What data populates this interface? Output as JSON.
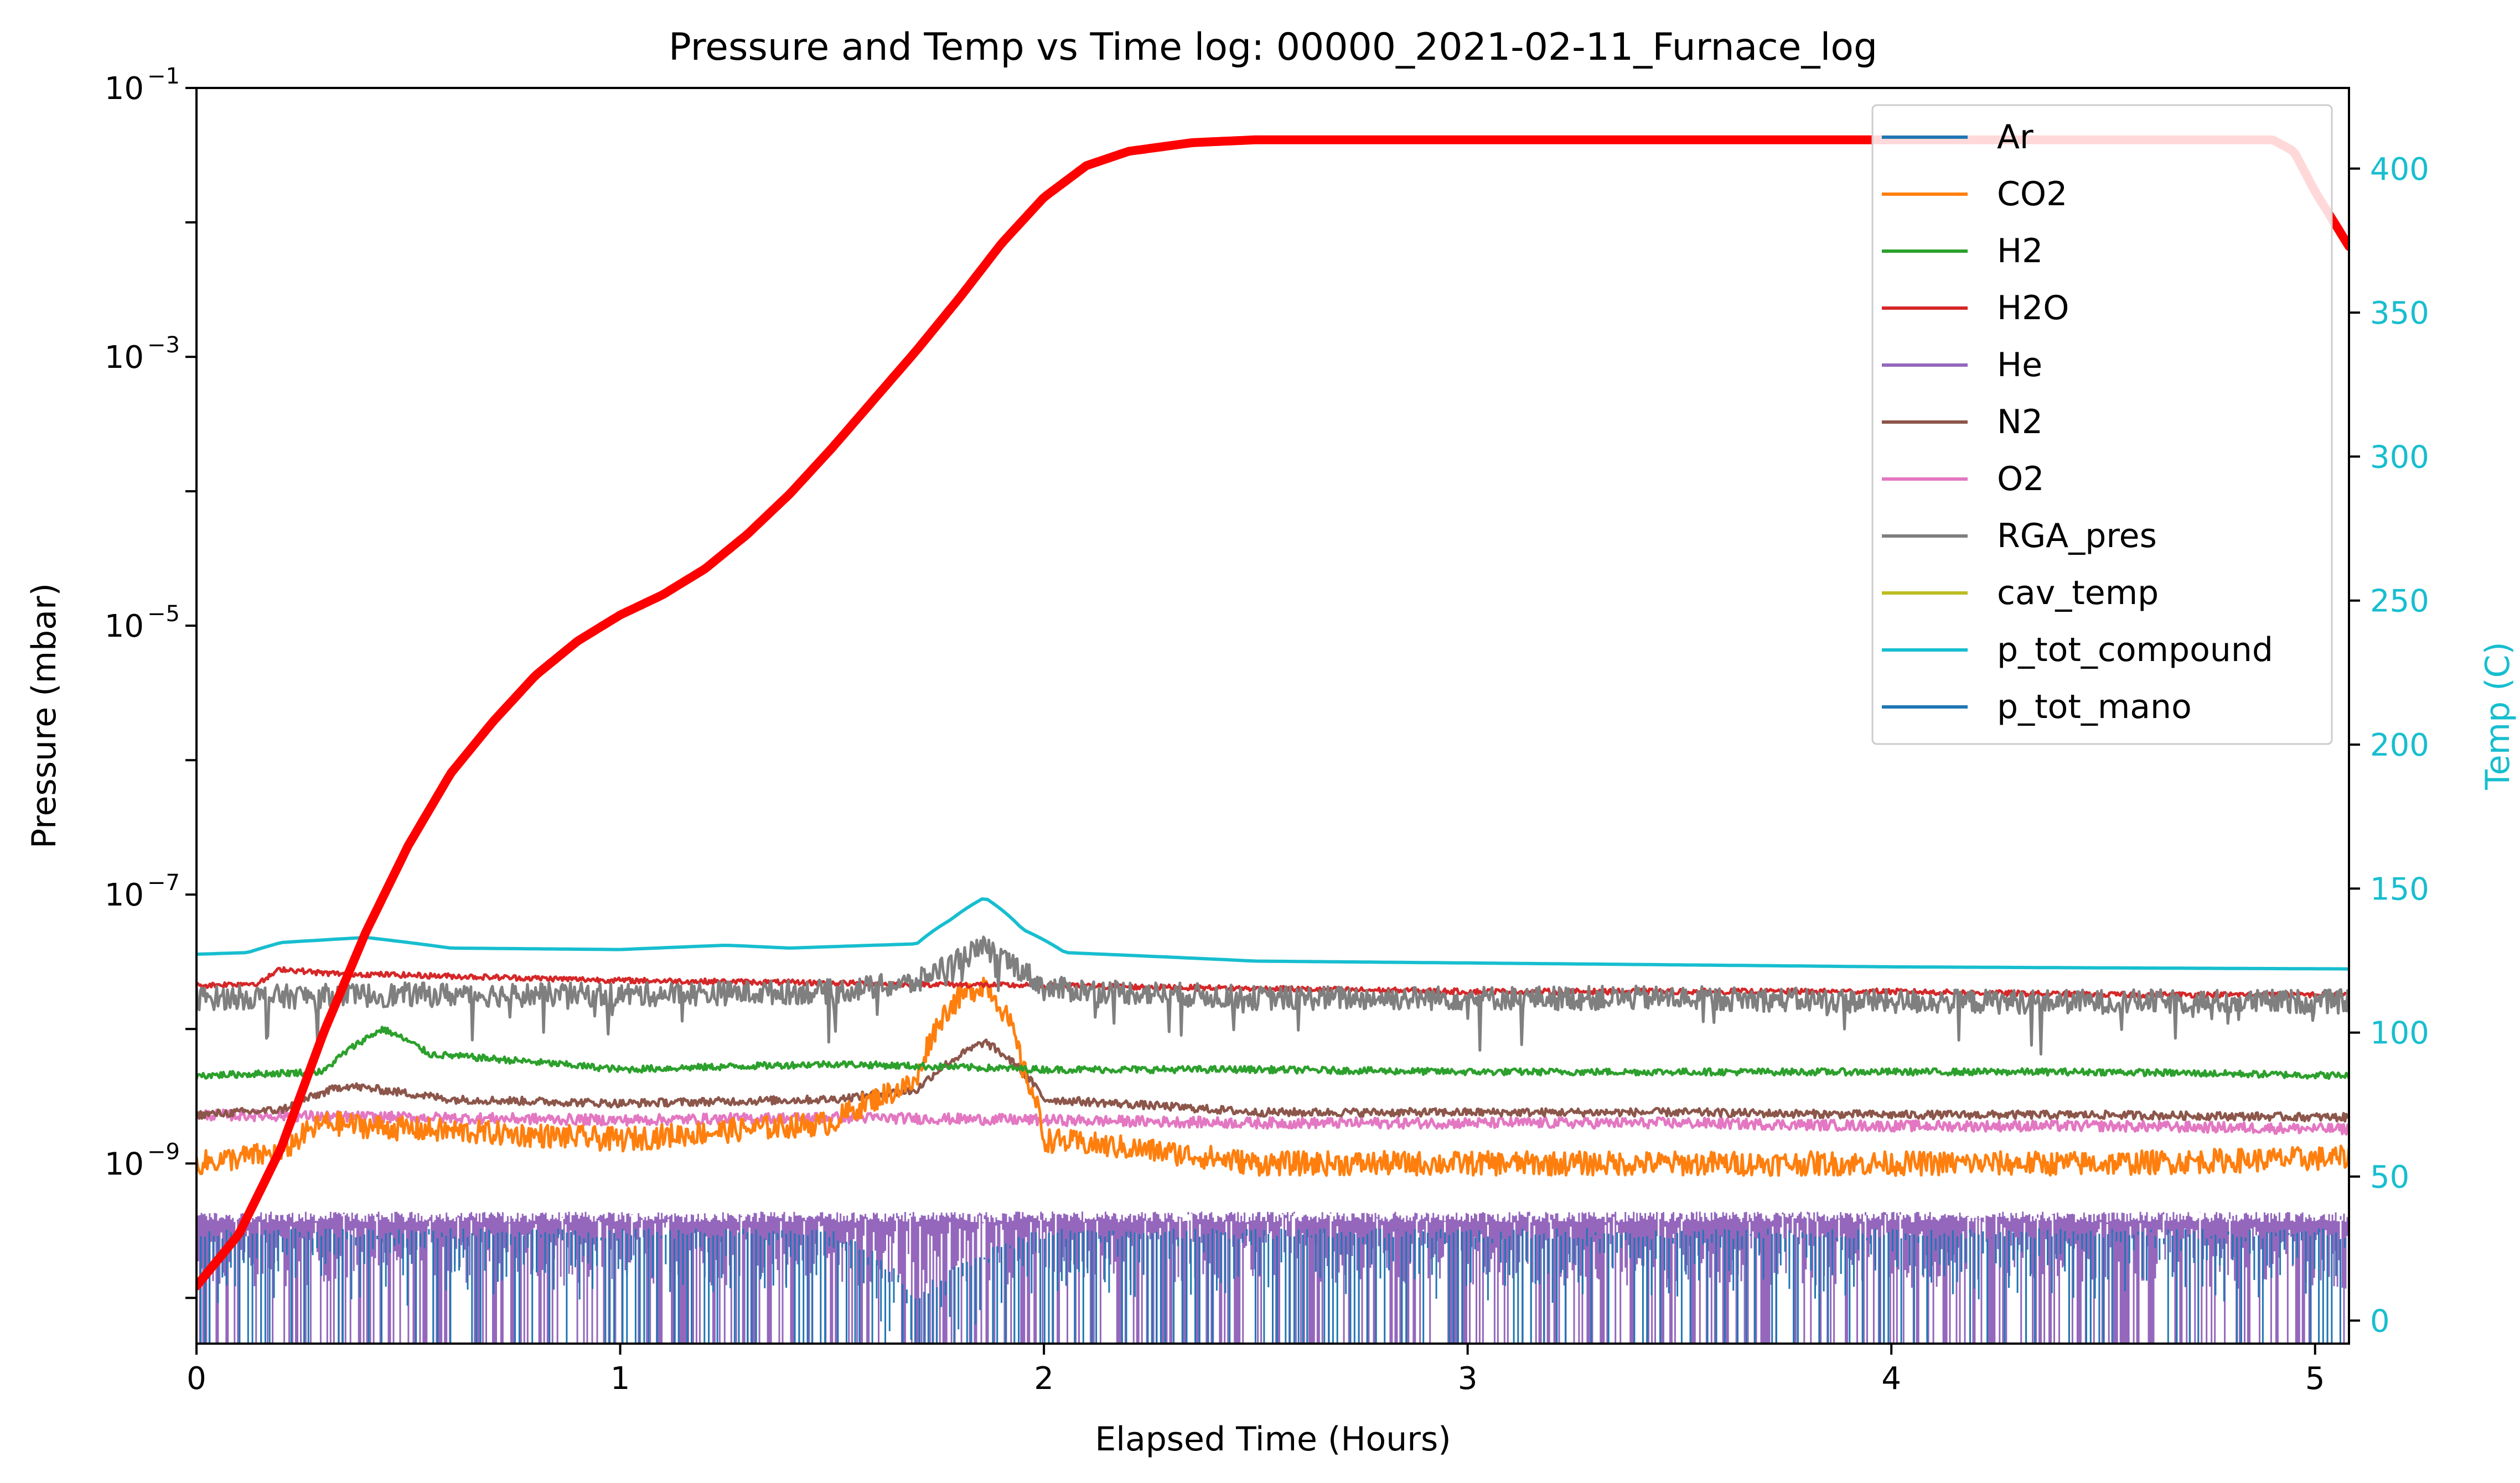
{
  "chart_data": {
    "type": "line",
    "title": "Pressure and Temp vs Time log: 00000_2021-02-11_Furnace_log",
    "xlabel": "Elapsed Time (Hours)",
    "ylabel_left": "Pressure (mbar)",
    "ylabel_right": "Temp (C)",
    "xlim": [
      0,
      5.08
    ],
    "ylim_left_log10": [
      -10.34,
      -1
    ],
    "left_scale": "log",
    "ylim_right": [
      -8,
      428
    ],
    "x_ticks": [
      {
        "v": 0,
        "label": "0"
      },
      {
        "v": 1,
        "label": "1"
      },
      {
        "v": 2,
        "label": "2"
      },
      {
        "v": 3,
        "label": "3"
      },
      {
        "v": 4,
        "label": "4"
      },
      {
        "v": 5,
        "label": "5"
      }
    ],
    "left_ticks": [
      {
        "v": -9,
        "base": "10",
        "exp": "−9"
      },
      {
        "v": -7,
        "base": "10",
        "exp": "−7"
      },
      {
        "v": -5,
        "base": "10",
        "exp": "−5"
      },
      {
        "v": -3,
        "base": "10",
        "exp": "−3"
      },
      {
        "v": -1,
        "base": "10",
        "exp": "−1"
      }
    ],
    "right_ticks": [
      "0",
      "50",
      "100",
      "150",
      "200",
      "250",
      "300",
      "350",
      "400"
    ],
    "right_axis_color": "#17becf",
    "legend_position": "upper-right",
    "grid": false,
    "series": [
      {
        "name": "Ar",
        "color": "#1f77b4",
        "axis": "left",
        "x": [
          0,
          0.5,
          1,
          1.5,
          1.7,
          2,
          2.5,
          3,
          3.5,
          4,
          4.5,
          5.08
        ],
        "y": [
          3e-10,
          3e-10,
          3e-10,
          3e-10,
          1e-10,
          3e-10,
          3e-10,
          3e-10,
          3e-10,
          3e-10,
          3e-10,
          3e-10
        ]
      },
      {
        "name": "CO2",
        "color": "#ff7f0e",
        "axis": "left",
        "x": [
          0,
          0.2,
          0.3,
          0.5,
          1.0,
          1.5,
          1.7,
          1.78,
          1.86,
          1.95,
          2.0,
          2.5,
          3.0,
          3.5,
          4.0,
          4.5,
          5.08
        ],
        "y": [
          1e-09,
          1.2e-09,
          2e-09,
          1.8e-09,
          1.5e-09,
          2e-09,
          4e-09,
          1.5e-08,
          2.2e-08,
          5e-09,
          1.5e-09,
          1e-09,
          1e-09,
          1e-09,
          1e-09,
          1e-09,
          1.1e-09
        ]
      },
      {
        "name": "H2",
        "color": "#2ca02c",
        "axis": "left",
        "x": [
          0,
          0.3,
          0.44,
          0.55,
          1.0,
          1.5,
          2.0,
          2.5,
          3.0,
          3.5,
          4.0,
          4.5,
          5.08
        ],
        "y": [
          4.5e-09,
          4.8e-09,
          1e-08,
          6.5e-09,
          5e-09,
          5.5e-09,
          5e-09,
          5e-09,
          4.8e-09,
          4.8e-09,
          4.8e-09,
          4.8e-09,
          4.5e-09
        ]
      },
      {
        "name": "H2O",
        "color": "#d62728",
        "axis": "left",
        "x": [
          0,
          0.15,
          0.2,
          0.3,
          1.0,
          1.5,
          2.0,
          2.5,
          3.0,
          3.5,
          4.0,
          4.5,
          5.08
        ],
        "y": [
          2.1e-08,
          2.2e-08,
          2.8e-08,
          2.6e-08,
          2.3e-08,
          2.2e-08,
          2.1e-08,
          2e-08,
          1.9e-08,
          1.9e-08,
          1.9e-08,
          1.8e-08,
          1.8e-08
        ]
      },
      {
        "name": "He",
        "color": "#9467bd",
        "axis": "left",
        "x": [
          0,
          0.5,
          1,
          1.5,
          2,
          2.5,
          3,
          3.5,
          4,
          4.5,
          5.08
        ],
        "y": [
          4e-10,
          4e-10,
          4e-10,
          4e-10,
          4e-10,
          4e-10,
          4e-10,
          4e-10,
          4e-10,
          4e-10,
          4e-10
        ]
      },
      {
        "name": "N2",
        "color": "#8c564b",
        "axis": "left",
        "x": [
          0,
          0.2,
          0.35,
          0.6,
          1.0,
          1.5,
          1.7,
          1.86,
          2.0,
          2.5,
          3.0,
          3.5,
          4.0,
          4.5,
          5.08
        ],
        "y": [
          2.3e-09,
          2.5e-09,
          3.8e-09,
          3e-09,
          2.8e-09,
          3e-09,
          3.5e-09,
          8e-09,
          3e-09,
          2.4e-09,
          2.4e-09,
          2.4e-09,
          2.3e-09,
          2.3e-09,
          2.2e-09
        ]
      },
      {
        "name": "O2",
        "color": "#e377c2",
        "axis": "left",
        "x": [
          0,
          0.5,
          1,
          1.5,
          2,
          2.5,
          3,
          3.5,
          4,
          4.5,
          5.08
        ],
        "y": [
          2.3e-09,
          2.2e-09,
          2.1e-09,
          2.2e-09,
          2.1e-09,
          2e-09,
          2e-09,
          2e-09,
          1.9e-09,
          1.9e-09,
          1.8e-09
        ]
      },
      {
        "name": "RGA_pres",
        "color": "#7f7f7f",
        "axis": "left",
        "x": [
          0,
          0.5,
          1.0,
          1.5,
          1.7,
          1.86,
          2.0,
          2.5,
          3.0,
          3.5,
          4.0,
          4.5,
          5.08
        ],
        "y": [
          1.7e-08,
          1.8e-08,
          1.8e-08,
          1.9e-08,
          2.2e-08,
          4e-08,
          2e-08,
          1.7e-08,
          1.7e-08,
          1.7e-08,
          1.6e-08,
          1.6e-08,
          1.6e-08
        ]
      },
      {
        "name": "cav_temp",
        "color": "#bcbd22",
        "axis": "right",
        "x": [],
        "y": []
      },
      {
        "name": "p_tot_compound",
        "color": "#17becf",
        "axis": "left",
        "x": [
          0,
          0.12,
          0.2,
          0.4,
          0.6,
          1.0,
          1.25,
          1.4,
          1.7,
          1.78,
          1.86,
          1.95,
          2.05,
          2.5,
          3.0,
          3.5,
          4.0,
          4.5,
          5.08
        ],
        "y": [
          3.6e-08,
          3.7e-08,
          4.4e-08,
          4.8e-08,
          4e-08,
          3.9e-08,
          4.2e-08,
          4e-08,
          4.3e-08,
          6.5e-08,
          9.5e-08,
          5.5e-08,
          3.7e-08,
          3.2e-08,
          3.1e-08,
          3e-08,
          2.9e-08,
          2.85e-08,
          2.8e-08
        ]
      },
      {
        "name": "p_tot_mano",
        "color": "#1f77b4",
        "axis": "left",
        "x": [],
        "y": []
      }
    ],
    "temperature_series": {
      "color": "#ff0000",
      "axis": "right",
      "x": [
        0,
        0.1,
        0.2,
        0.3,
        0.4,
        0.5,
        0.6,
        0.7,
        0.8,
        0.9,
        1.0,
        1.1,
        1.2,
        1.3,
        1.4,
        1.5,
        1.6,
        1.7,
        1.8,
        1.9,
        2.0,
        2.1,
        2.2,
        2.35,
        2.5,
        3.0,
        3.5,
        4.0,
        4.5,
        4.9,
        4.95,
        5.0,
        5.08
      ],
      "y": [
        12,
        30,
        60,
        100,
        135,
        165,
        190,
        208,
        224,
        236,
        245,
        252,
        261,
        273,
        287,
        303,
        320,
        337,
        355,
        374,
        390,
        401,
        406,
        409,
        410,
        410,
        410,
        410,
        410,
        410,
        406,
        392,
        373
      ]
    }
  }
}
